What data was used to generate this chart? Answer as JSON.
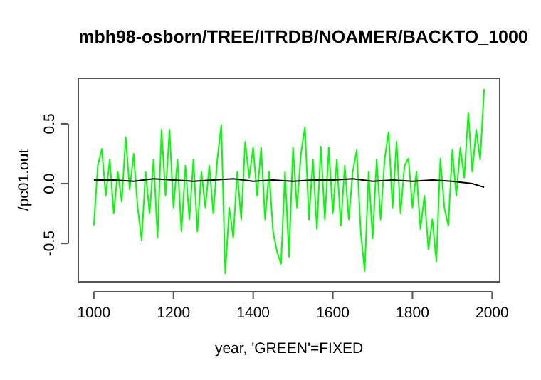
{
  "chart_data": {
    "type": "line",
    "title": "mbh98-osborn/TREE/ITRDB/NOAMER/BACKTO_1000",
    "xlabel": "year, 'GREEN'=FIXED",
    "ylabel": "/pc01.out",
    "xlim": [
      961,
      2019
    ],
    "xticks": [
      1000,
      1200,
      1400,
      1600,
      1800,
      2000
    ],
    "ylim": [
      -0.82,
      0.88
    ],
    "yticks": [
      {
        "value": -0.5,
        "label": "-0.5"
      },
      {
        "value": 0,
        "label": "0.0"
      },
      {
        "value": 0.5,
        "label": "0.5"
      }
    ],
    "grid": false,
    "series": [
      {
        "color": "#00ff00",
        "x": [
          1000,
          1010,
          1020,
          1030,
          1040,
          1050,
          1060,
          1070,
          1080,
          1090,
          1100,
          1110,
          1120,
          1130,
          1140,
          1150,
          1160,
          1170,
          1180,
          1190,
          1200,
          1210,
          1220,
          1230,
          1240,
          1250,
          1260,
          1270,
          1280,
          1290,
          1300,
          1310,
          1320,
          1330,
          1340,
          1350,
          1360,
          1370,
          1380,
          1390,
          1400,
          1410,
          1420,
          1430,
          1440,
          1450,
          1460,
          1470,
          1480,
          1490,
          1500,
          1510,
          1520,
          1530,
          1540,
          1550,
          1560,
          1570,
          1580,
          1590,
          1600,
          1610,
          1620,
          1630,
          1640,
          1650,
          1660,
          1670,
          1680,
          1690,
          1700,
          1710,
          1720,
          1730,
          1740,
          1750,
          1760,
          1770,
          1780,
          1790,
          1800,
          1810,
          1820,
          1830,
          1840,
          1850,
          1860,
          1870,
          1880,
          1890,
          1900,
          1910,
          1920,
          1930,
          1940,
          1950,
          1960,
          1970,
          1980
        ],
        "values": [
          -0.35,
          0.15,
          0.29,
          -0.1,
          0.2,
          -0.25,
          0.1,
          -0.15,
          0.39,
          -0.05,
          0.25,
          -0.2,
          -0.47,
          0.1,
          -0.25,
          0.2,
          -0.45,
          0.45,
          -0.1,
          0.45,
          -0.2,
          0.2,
          -0.4,
          0.15,
          -0.3,
          0.2,
          -0.4,
          0.1,
          -0.2,
          0.15,
          -0.25,
          0.2,
          0.49,
          -0.75,
          -0.2,
          -0.45,
          0.1,
          -0.3,
          0.35,
          0.05,
          0.3,
          -0.1,
          0.3,
          -0.3,
          0.1,
          -0.4,
          -0.57,
          -0.67,
          0.1,
          -0.61,
          0.3,
          -0.2,
          0.25,
          0.47,
          -0.3,
          0.2,
          -0.38,
          0.31,
          -0.3,
          0.3,
          -0.25,
          0.2,
          -0.35,
          0.15,
          -0.3,
          0.1,
          0.28,
          -0.4,
          -0.73,
          0.1,
          -0.46,
          0.2,
          -0.3,
          0.2,
          0.43,
          -0.2,
          0.35,
          -0.25,
          0.15,
          0.21,
          -0.2,
          0.1,
          -0.38,
          -0.1,
          -0.55,
          -0.3,
          -0.65,
          0.21,
          -0.2,
          -0.35,
          0.28,
          -0.1,
          0.3,
          0.05,
          0.59,
          0.1,
          0.45,
          0.2,
          0.79
        ]
      },
      {
        "color": "#000000",
        "x": [
          1000,
          1050,
          1100,
          1150,
          1200,
          1250,
          1300,
          1350,
          1400,
          1450,
          1500,
          1550,
          1600,
          1650,
          1700,
          1750,
          1800,
          1850,
          1900,
          1950,
          1980
        ],
        "values": [
          0.03,
          0.03,
          0.02,
          0.04,
          0.03,
          0.02,
          0.03,
          0.04,
          0.02,
          0.03,
          0.02,
          0.03,
          0.03,
          0.04,
          0.02,
          0.03,
          0.02,
          0.03,
          0.02,
          0.0,
          -0.03
        ]
      }
    ]
  }
}
